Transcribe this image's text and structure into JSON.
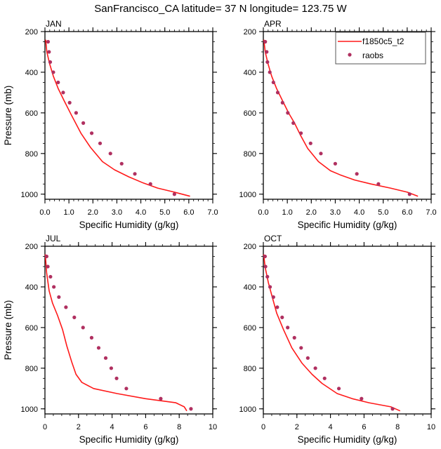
{
  "title": "SanFrancisco_CA  latitude= 37 N longitude= 123.75 W",
  "colors": {
    "model_line": "#ff1a1a",
    "obs_marker": "#b03060",
    "frame": "#000000",
    "legend_border": "#555555"
  },
  "legend": {
    "placement": "top-right of APR panel",
    "entries": [
      {
        "label": "f1850c5_t2",
        "type": "line"
      },
      {
        "label": "raobs",
        "type": "marker"
      }
    ]
  },
  "chart_data": [
    {
      "type": "line",
      "panel": "JAN",
      "title": "JAN",
      "xlabel": "Specific Humidity (g/kg)",
      "ylabel": "Pressure (mb)",
      "xlim": [
        0,
        7
      ],
      "ylim": [
        200,
        1025
      ],
      "y_inverted": true,
      "x_ticks": [
        0,
        1,
        2,
        3,
        4,
        5,
        6,
        7
      ],
      "x_tick_labels": [
        "0.0",
        "1.0",
        "2.0",
        "3.0",
        "4.0",
        "5.0",
        "6.0",
        "7.0"
      ],
      "y_ticks": [
        200,
        400,
        600,
        800,
        1000
      ],
      "y_tick_labels": [
        "200",
        "400",
        "600",
        "800",
        "1000"
      ],
      "series": [
        {
          "name": "f1850c5_t2",
          "kind": "line",
          "x": [
            0.03,
            0.08,
            0.2,
            0.35,
            0.55,
            0.8,
            1.1,
            1.5,
            1.9,
            2.4,
            2.9,
            3.5,
            4.1,
            4.7,
            5.4,
            6.05
          ],
          "y": [
            240,
            300,
            360,
            420,
            480,
            540,
            610,
            700,
            770,
            840,
            880,
            915,
            945,
            970,
            990,
            1010
          ]
        },
        {
          "name": "raobs",
          "kind": "scatter",
          "x": [
            0.13,
            0.17,
            0.22,
            0.35,
            0.55,
            0.76,
            1.03,
            1.3,
            1.6,
            1.95,
            2.3,
            2.73,
            3.2,
            3.75,
            4.4,
            5.4
          ],
          "y": [
            250,
            300,
            350,
            400,
            450,
            500,
            550,
            600,
            650,
            700,
            750,
            800,
            850,
            900,
            950,
            1000
          ]
        }
      ]
    },
    {
      "type": "line",
      "panel": "APR",
      "title": "APR",
      "xlabel": "Specific Humidity (g/kg)",
      "ylabel": "",
      "xlim": [
        0,
        7
      ],
      "ylim": [
        200,
        1025
      ],
      "y_inverted": true,
      "x_ticks": [
        0,
        1,
        2,
        3,
        4,
        5,
        6,
        7
      ],
      "x_tick_labels": [
        "0.0",
        "1.0",
        "2.0",
        "3.0",
        "4.0",
        "5.0",
        "6.0",
        "7.0"
      ],
      "y_ticks": [
        200,
        400,
        600,
        800,
        1000
      ],
      "y_tick_labels": [
        "200",
        "400",
        "600",
        "800",
        "1000"
      ],
      "series": [
        {
          "name": "f1850c5_t2",
          "kind": "line",
          "x": [
            0.02,
            0.08,
            0.2,
            0.35,
            0.55,
            0.8,
            1.05,
            1.3,
            1.55,
            1.85,
            2.3,
            2.8,
            3.2,
            3.8,
            4.5,
            5.3,
            6.0,
            6.45
          ],
          "y": [
            240,
            300,
            360,
            420,
            480,
            540,
            600,
            650,
            710,
            775,
            840,
            885,
            905,
            930,
            950,
            970,
            990,
            1010
          ]
        },
        {
          "name": "raobs",
          "kind": "scatter",
          "x": [
            0.08,
            0.14,
            0.17,
            0.27,
            0.42,
            0.6,
            0.8,
            1.02,
            1.25,
            1.57,
            1.97,
            2.4,
            3.0,
            3.9,
            4.8,
            6.1
          ],
          "y": [
            250,
            300,
            350,
            400,
            450,
            500,
            550,
            600,
            650,
            700,
            750,
            800,
            850,
            900,
            950,
            1000
          ]
        }
      ]
    },
    {
      "type": "line",
      "panel": "JUL",
      "title": "JUL",
      "xlabel": "Specific Humidity (g/kg)",
      "ylabel": "Pressure (mb)",
      "xlim": [
        0,
        10
      ],
      "ylim": [
        200,
        1025
      ],
      "y_inverted": true,
      "x_ticks": [
        0,
        2,
        4,
        6,
        8,
        10
      ],
      "x_tick_labels": [
        "0",
        "2",
        "4",
        "6",
        "8",
        "10"
      ],
      "y_ticks": [
        200,
        400,
        600,
        800,
        1000
      ],
      "y_tick_labels": [
        "200",
        "400",
        "600",
        "800",
        "1000"
      ],
      "series": [
        {
          "name": "f1850c5_t2",
          "kind": "line",
          "x": [
            0.02,
            0.1,
            0.25,
            0.45,
            0.75,
            1.05,
            1.3,
            1.6,
            1.85,
            2.2,
            2.9,
            4.3,
            6.0,
            7.8,
            8.3,
            8.45
          ],
          "y": [
            240,
            330,
            420,
            480,
            540,
            610,
            690,
            770,
            830,
            870,
            900,
            925,
            950,
            970,
            990,
            1010
          ]
        },
        {
          "name": "raobs",
          "kind": "scatter",
          "x": [
            0.1,
            0.17,
            0.33,
            0.53,
            0.83,
            1.25,
            1.75,
            2.27,
            2.78,
            3.2,
            3.62,
            3.95,
            4.27,
            4.85,
            6.9,
            8.7
          ],
          "y": [
            250,
            300,
            350,
            400,
            450,
            500,
            550,
            600,
            650,
            700,
            750,
            800,
            850,
            900,
            950,
            1000
          ]
        }
      ]
    },
    {
      "type": "line",
      "panel": "OCT",
      "title": "OCT",
      "xlabel": "Specific Humidity (g/kg)",
      "ylabel": "",
      "xlim": [
        0,
        10
      ],
      "ylim": [
        200,
        1025
      ],
      "y_inverted": true,
      "x_ticks": [
        0,
        2,
        4,
        6,
        8,
        10
      ],
      "x_tick_labels": [
        "0",
        "2",
        "4",
        "6",
        "8",
        "10"
      ],
      "y_ticks": [
        200,
        400,
        600,
        800,
        1000
      ],
      "y_tick_labels": [
        "200",
        "400",
        "600",
        "800",
        "1000"
      ],
      "series": [
        {
          "name": "f1850c5_t2",
          "kind": "line",
          "x": [
            0.02,
            0.1,
            0.3,
            0.5,
            0.8,
            1.2,
            1.7,
            2.3,
            2.9,
            3.5,
            4.4,
            5.3,
            6.3,
            7.6,
            8.15
          ],
          "y": [
            240,
            300,
            380,
            440,
            530,
            610,
            700,
            775,
            830,
            875,
            925,
            950,
            970,
            990,
            1010
          ]
        },
        {
          "name": "raobs",
          "kind": "scatter",
          "x": [
            0.1,
            0.13,
            0.24,
            0.4,
            0.6,
            0.83,
            1.12,
            1.45,
            1.85,
            2.25,
            2.65,
            3.1,
            3.65,
            4.5,
            5.85,
            7.7
          ],
          "y": [
            250,
            300,
            350,
            400,
            450,
            500,
            550,
            600,
            650,
            700,
            750,
            800,
            850,
            900,
            950,
            1000
          ]
        }
      ]
    }
  ]
}
